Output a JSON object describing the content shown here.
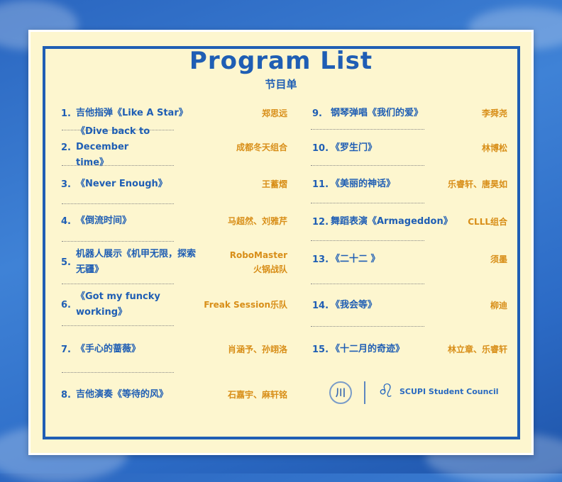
{
  "title": "Program List",
  "subtitle": "节目单",
  "left": [
    {
      "num": "1.",
      "name": "吉他指弹《Like A Star》",
      "performer": "郑思远"
    },
    {
      "num": "2.",
      "name": "《Dive back to December time》",
      "performer": "成都冬天组合"
    },
    {
      "num": "3.",
      "name": "《Never Enough》",
      "performer": "王蓄熠"
    },
    {
      "num": "4.",
      "name": "《倒流时间》",
      "performer": "马超然、刘雅芹"
    },
    {
      "num": "5.",
      "name": "机器人展示《机甲无限，探索无疆》",
      "performer": "RoboMaster 火锅战队"
    },
    {
      "num": "6.",
      "name": "《Got my funcky working》",
      "performer": "Freak Session乐队"
    },
    {
      "num": "7.",
      "name": "《手心的蔷薇》",
      "performer": "肖涵予、孙翊洛"
    },
    {
      "num": "8.",
      "name": "吉他演奏《等待的风》",
      "performer": "石嘉宇、麻轩铭"
    }
  ],
  "right": [
    {
      "num": "9.",
      "name": "钢琴弹唱《我们的爱》",
      "performer": "李舜尧"
    },
    {
      "num": "10.",
      "name": "《罗生门》",
      "performer": "林博松"
    },
    {
      "num": "11.",
      "name": "《美丽的神话》",
      "performer": "乐睿轩、唐昊如"
    },
    {
      "num": "12.",
      "name": "舞蹈表演《Armageddon》",
      "performer": "CLLL组合"
    },
    {
      "num": "13.",
      "name": "《二十二 》",
      "performer": "须墨"
    },
    {
      "num": "14.",
      "name": "《我会等》",
      "performer": "柳迪"
    },
    {
      "num": "15.",
      "name": "《十二月的奇迹》",
      "performer": "林立章、乐睿轩"
    }
  ],
  "footer": {
    "logo_glyph": "川",
    "org": "SCUPI Student Council"
  },
  "colors": {
    "blue": "#1f5eb4",
    "orange": "#d88e18",
    "card": "#fdf6cf"
  }
}
